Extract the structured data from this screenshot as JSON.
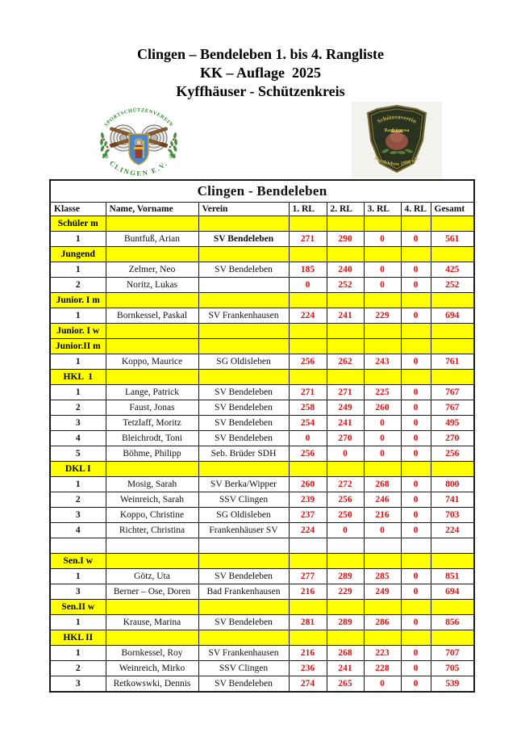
{
  "page": {
    "title_lines": [
      "Clingen – Bendeleben 1. bis 4. Rangliste",
      "KK – Auflage  2025",
      "Kyffhäuser - Schützenkreis"
    ]
  },
  "logos": {
    "clingen": {
      "top_text": "SPORTSCHÜTZENVEREIN",
      "bottom_text": "CLINGEN E.V.",
      "year_left": "18",
      "year_right": "93",
      "colors": {
        "text_green": "#2e8b2e",
        "shield_blue": "#4a86c8",
        "rifle_brown": "#8a5a28",
        "laurel_green": "#3f8f3f"
      }
    },
    "bendeleben": {
      "line1": "Schützenverein",
      "line2": "Barbarossa",
      "bottom_text": "Bendeleben 1990 e.V.",
      "colors": {
        "patch_dark": "#2a331f",
        "text_gold": "#c8b050",
        "figure_red": "#8e5040"
      }
    }
  },
  "table": {
    "title": "Clingen - Bendeleben",
    "columns": [
      "Klasse",
      "Name, Vorname",
      "Verein",
      "1. RL",
      "2. RL",
      "3. RL",
      "4. RL",
      "Gesamt"
    ],
    "colors": {
      "category_bg": "#ffff00",
      "score_red": "#e01212"
    },
    "rows": [
      {
        "type": "category",
        "label": "Schüler m"
      },
      {
        "type": "data",
        "rank": "1",
        "name": "Buntfuß, Arian",
        "verein": "SV Bendeleben",
        "verein_bold": true,
        "scores": [
          "271",
          "290",
          "0",
          "0"
        ],
        "total": "561"
      },
      {
        "type": "category",
        "label": "Jungend"
      },
      {
        "type": "data",
        "rank": "1",
        "name": "Zelmer, Neo",
        "verein": "SV Bendeleben",
        "scores": [
          "185",
          "240",
          "0",
          "0"
        ],
        "total": "425"
      },
      {
        "type": "data",
        "rank": "2",
        "name": "Noritz, Lukas",
        "verein": "",
        "scores": [
          "0",
          "252",
          "0",
          "0"
        ],
        "total": "252"
      },
      {
        "type": "category",
        "label": "Junior. I m"
      },
      {
        "type": "data",
        "rank": "1",
        "name": "Bornkessel, Paskal",
        "verein": "SV Frankenhausen",
        "scores": [
          "224",
          "241",
          "229",
          "0"
        ],
        "total": "694"
      },
      {
        "type": "category",
        "label": "Junior. I w"
      },
      {
        "type": "category",
        "label": "Junior.II m"
      },
      {
        "type": "data",
        "rank": "1",
        "name": "Koppo, Maurice",
        "verein": "SG Oldisleben",
        "scores": [
          "256",
          "262",
          "243",
          "0"
        ],
        "total": "761"
      },
      {
        "type": "category",
        "label": "HKL  1"
      },
      {
        "type": "data",
        "rank": "1",
        "name": "Lange, Patrick",
        "verein": "SV Bendeleben",
        "scores": [
          "271",
          "271",
          "225",
          "0"
        ],
        "total": "767"
      },
      {
        "type": "data",
        "rank": "2",
        "name": "Faust, Jonas",
        "verein": "SV Bendeleben",
        "scores": [
          "258",
          "249",
          "260",
          "0"
        ],
        "total": "767"
      },
      {
        "type": "data",
        "rank": "3",
        "name": "Tetzlaff, Moritz",
        "verein": "SV Bendeleben",
        "scores": [
          "254",
          "241",
          "0",
          "0"
        ],
        "total": "495"
      },
      {
        "type": "data",
        "rank": "4",
        "name": "Bleichrodt, Toni",
        "verein": "SV Bendeleben",
        "scores": [
          "0",
          "270",
          "0",
          "0"
        ],
        "total": "270"
      },
      {
        "type": "data",
        "rank": "5",
        "name": "Böhme, Philipp",
        "verein": "Seb. Brüder SDH",
        "scores": [
          "256",
          "0",
          "0",
          "0"
        ],
        "total": "256"
      },
      {
        "type": "category",
        "label": "DKL I"
      },
      {
        "type": "data",
        "rank": "1",
        "name": "Mosig, Sarah",
        "verein": "SV Berka/Wipper",
        "scores": [
          "260",
          "272",
          "268",
          "0"
        ],
        "total": "800"
      },
      {
        "type": "data",
        "rank": "2",
        "name": "Weinreich, Sarah",
        "verein": "SSV Clingen",
        "scores": [
          "239",
          "256",
          "246",
          "0"
        ],
        "total": "741"
      },
      {
        "type": "data",
        "rank": "3",
        "name": "Koppo, Christine",
        "verein": "SG Oldisleben",
        "verein_small": true,
        "scores": [
          "237",
          "250",
          "216",
          "0"
        ],
        "total": "703"
      },
      {
        "type": "data",
        "rank": "4",
        "name": "Richter, Christina",
        "verein": "Frankenhäuser SV",
        "verein_small": true,
        "scores": [
          "224",
          "0",
          "0",
          "0"
        ],
        "total": "224"
      },
      {
        "type": "empty"
      },
      {
        "type": "category",
        "label": "Sen.I w"
      },
      {
        "type": "data",
        "rank": "1",
        "name": "Götz, Uta",
        "verein": "SV Bendeleben",
        "scores": [
          "277",
          "289",
          "285",
          "0"
        ],
        "total": "851"
      },
      {
        "type": "data",
        "rank": "3",
        "name": "Berner – Ose, Doren",
        "verein": "Bad Frankenhausen",
        "scores": [
          "216",
          "229",
          "249",
          "0"
        ],
        "total": "694"
      },
      {
        "type": "category",
        "label": "Sen.II w"
      },
      {
        "type": "data",
        "rank": "1",
        "name": "Krause, Marina",
        "verein": "SV Bendeleben",
        "scores": [
          "281",
          "289",
          "286",
          "0"
        ],
        "total": "856"
      },
      {
        "type": "category",
        "label": "HKL II"
      },
      {
        "type": "data",
        "rank": "1",
        "name": "Bornkessel, Roy",
        "verein": "SV Frankenhausen",
        "scores": [
          "216",
          "268",
          "223",
          "0"
        ],
        "total": "707"
      },
      {
        "type": "data",
        "rank": "2",
        "name": "Weinreich, Mirko",
        "verein": "SSV Clingen",
        "scores": [
          "236",
          "241",
          "228",
          "0"
        ],
        "total": "705"
      },
      {
        "type": "data",
        "rank": "3",
        "name": "Retkowswki, Dennis",
        "verein": "SV Bendeleben",
        "scores": [
          "274",
          "265",
          "0",
          "0"
        ],
        "total": "539"
      }
    ]
  }
}
